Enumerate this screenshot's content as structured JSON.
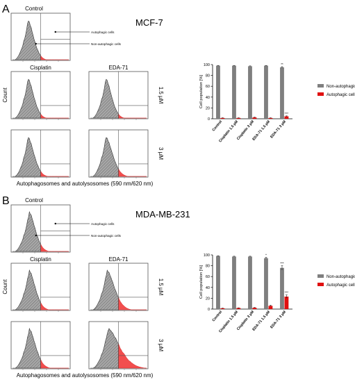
{
  "panels": [
    {
      "letter": "A",
      "cell_line": "MCF-7",
      "control_label": "Control",
      "treatments": [
        "Cisplatin",
        "EDA-71"
      ],
      "doses": [
        "1.5 µM",
        "3 µM"
      ],
      "y_axis_label": "Count",
      "x_axis_label": "Autophagosomes and autolysosomes (590 nm/620 nm)",
      "gate_labels": [
        "Autophagic cells",
        "Non-autophagic cells"
      ],
      "histograms": [
        {
          "name": "control",
          "red_fraction": 0.02
        },
        {
          "name": "cisplatin-1.5",
          "red_fraction": 0.02
        },
        {
          "name": "eda71-1.5",
          "red_fraction": 0.02
        },
        {
          "name": "cisplatin-3",
          "red_fraction": 0.03
        },
        {
          "name": "eda71-3",
          "red_fraction": 0.05
        }
      ]
    },
    {
      "letter": "B",
      "cell_line": "MDA-MB-231",
      "control_label": "Control",
      "treatments": [
        "Cisplatin",
        "EDA-71"
      ],
      "doses": [
        "1.5 µM",
        "3 µM"
      ],
      "y_axis_label": "Count",
      "x_axis_label": "Autophagosomes and autolysosomes (590 nm/620 nm)",
      "gate_labels": [
        "Autophagic cells",
        "Non-autophagic cells"
      ],
      "histograms": [
        {
          "name": "control",
          "red_fraction": 0.02
        },
        {
          "name": "cisplatin-1.5",
          "red_fraction": 0.02
        },
        {
          "name": "eda71-1.5",
          "red_fraction": 0.06
        },
        {
          "name": "cisplatin-3",
          "red_fraction": 0.03
        },
        {
          "name": "eda71-3",
          "red_fraction": 0.24
        }
      ]
    }
  ],
  "chart_data": [
    {
      "type": "bar",
      "categories": [
        "Control",
        "Cisplatin 1.5 µM",
        "Cisplatin 3 µM",
        "EDA-71 1.5 µM",
        "EDA-71 3 µM"
      ],
      "series": [
        {
          "name": "Non-autophagic cells",
          "color": "#7f7f7f",
          "values": [
            98,
            98,
            97,
            98,
            95
          ],
          "errors": [
            0.5,
            0.5,
            0.6,
            0.5,
            1.2
          ],
          "annotations": [
            "",
            "",
            "",
            "",
            "**"
          ]
        },
        {
          "name": "Autophagic cells",
          "color": "#e01010",
          "values": [
            1.5,
            1.5,
            2.5,
            1.5,
            4.5
          ],
          "errors": [
            0.3,
            0.3,
            0.4,
            0.3,
            0.8
          ],
          "annotations": [
            "",
            "",
            "",
            "",
            "***"
          ]
        }
      ],
      "ylabel": "Cell population [%]",
      "xlabel": "",
      "ylim": [
        0,
        100
      ],
      "yticks": [
        0,
        20,
        40,
        60,
        80,
        100
      ],
      "legend": "right"
    },
    {
      "type": "bar",
      "categories": [
        "Control",
        "Cisplatin 1.5 µM",
        "Cisplatin 3 µM",
        "EDA-71 1.5 µM",
        "EDA-71 3 µM"
      ],
      "series": [
        {
          "name": "Non-autophagic cells",
          "color": "#7f7f7f",
          "values": [
            98,
            97,
            97,
            94,
            76
          ],
          "errors": [
            0.5,
            0.6,
            0.6,
            1.5,
            4
          ],
          "annotations": [
            "",
            "",
            "",
            "*",
            "***"
          ]
        },
        {
          "name": "Autophagic cells",
          "color": "#e01010",
          "values": [
            1.5,
            2,
            2.5,
            6,
            23
          ],
          "errors": [
            0.3,
            0.3,
            0.4,
            1,
            3
          ],
          "annotations": [
            "",
            "",
            "",
            "",
            "***"
          ]
        }
      ],
      "ylabel": "Cell population [%]",
      "xlabel": "",
      "ylim": [
        0,
        100
      ],
      "yticks": [
        0,
        20,
        40,
        60,
        80,
        100
      ],
      "legend": "right"
    }
  ]
}
